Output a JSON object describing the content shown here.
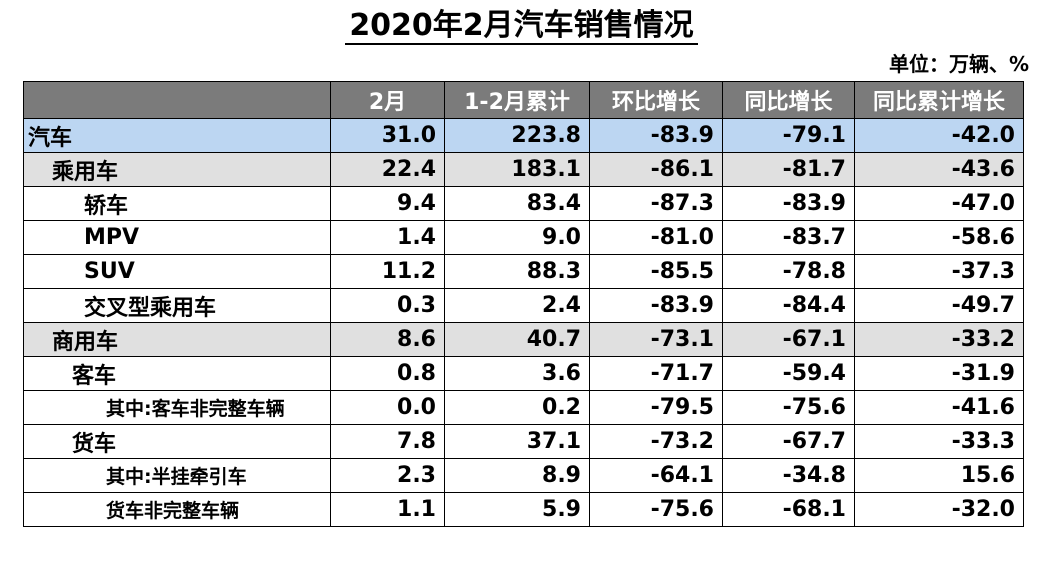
{
  "title": "2020年2月汽车销售情况",
  "unit": "单位：万辆、%",
  "table": {
    "headers": [
      "",
      "2月",
      "1-2月累计",
      "环比增长",
      "同比增长",
      "同比累计增长"
    ],
    "rows": [
      {
        "level": "lvl0",
        "name": "汽车",
        "values": [
          "31.0",
          "223.8",
          "-83.9",
          "-79.1",
          "-42.0"
        ]
      },
      {
        "level": "lvl1",
        "name": "乘用车",
        "values": [
          "22.4",
          "183.1",
          "-86.1",
          "-81.7",
          "-43.6"
        ]
      },
      {
        "level": "lvl2",
        "name": "轿车",
        "values": [
          "9.4",
          "83.4",
          "-87.3",
          "-83.9",
          "-47.0"
        ]
      },
      {
        "level": "lvl2",
        "name": "MPV",
        "values": [
          "1.4",
          "9.0",
          "-81.0",
          "-83.7",
          "-58.6"
        ]
      },
      {
        "level": "lvl2",
        "name": "SUV",
        "values": [
          "11.2",
          "88.3",
          "-85.5",
          "-78.8",
          "-37.3"
        ]
      },
      {
        "level": "lvl2",
        "name": "交叉型乘用车",
        "values": [
          "0.3",
          "2.4",
          "-83.9",
          "-84.4",
          "-49.7"
        ]
      },
      {
        "level": "lvl1",
        "name": "商用车",
        "values": [
          "8.6",
          "40.7",
          "-73.1",
          "-67.1",
          "-33.2"
        ]
      },
      {
        "level": "lvl2b",
        "name": "客车",
        "values": [
          "0.8",
          "3.6",
          "-71.7",
          "-59.4",
          "-31.9"
        ]
      },
      {
        "level": "lvl3",
        "name": "其中:客车非完整车辆",
        "values": [
          "0.0",
          "0.2",
          "-79.5",
          "-75.6",
          "-41.6"
        ]
      },
      {
        "level": "lvl2b",
        "name": "货车",
        "values": [
          "7.8",
          "37.1",
          "-73.2",
          "-67.7",
          "-33.3"
        ]
      },
      {
        "level": "lvl3",
        "name": "其中:半挂牵引车",
        "values": [
          "2.3",
          "8.9",
          "-64.1",
          "-34.8",
          "15.6"
        ]
      },
      {
        "level": "lvl3",
        "name": "货车非完整车辆",
        "values": [
          "1.1",
          "5.9",
          "-75.6",
          "-68.1",
          "-32.0"
        ]
      }
    ]
  },
  "colors": {
    "header_bg": "#7b7b7b",
    "total_row_bg": "#bcd6f2",
    "category_row_bg": "#e0e0e0"
  }
}
